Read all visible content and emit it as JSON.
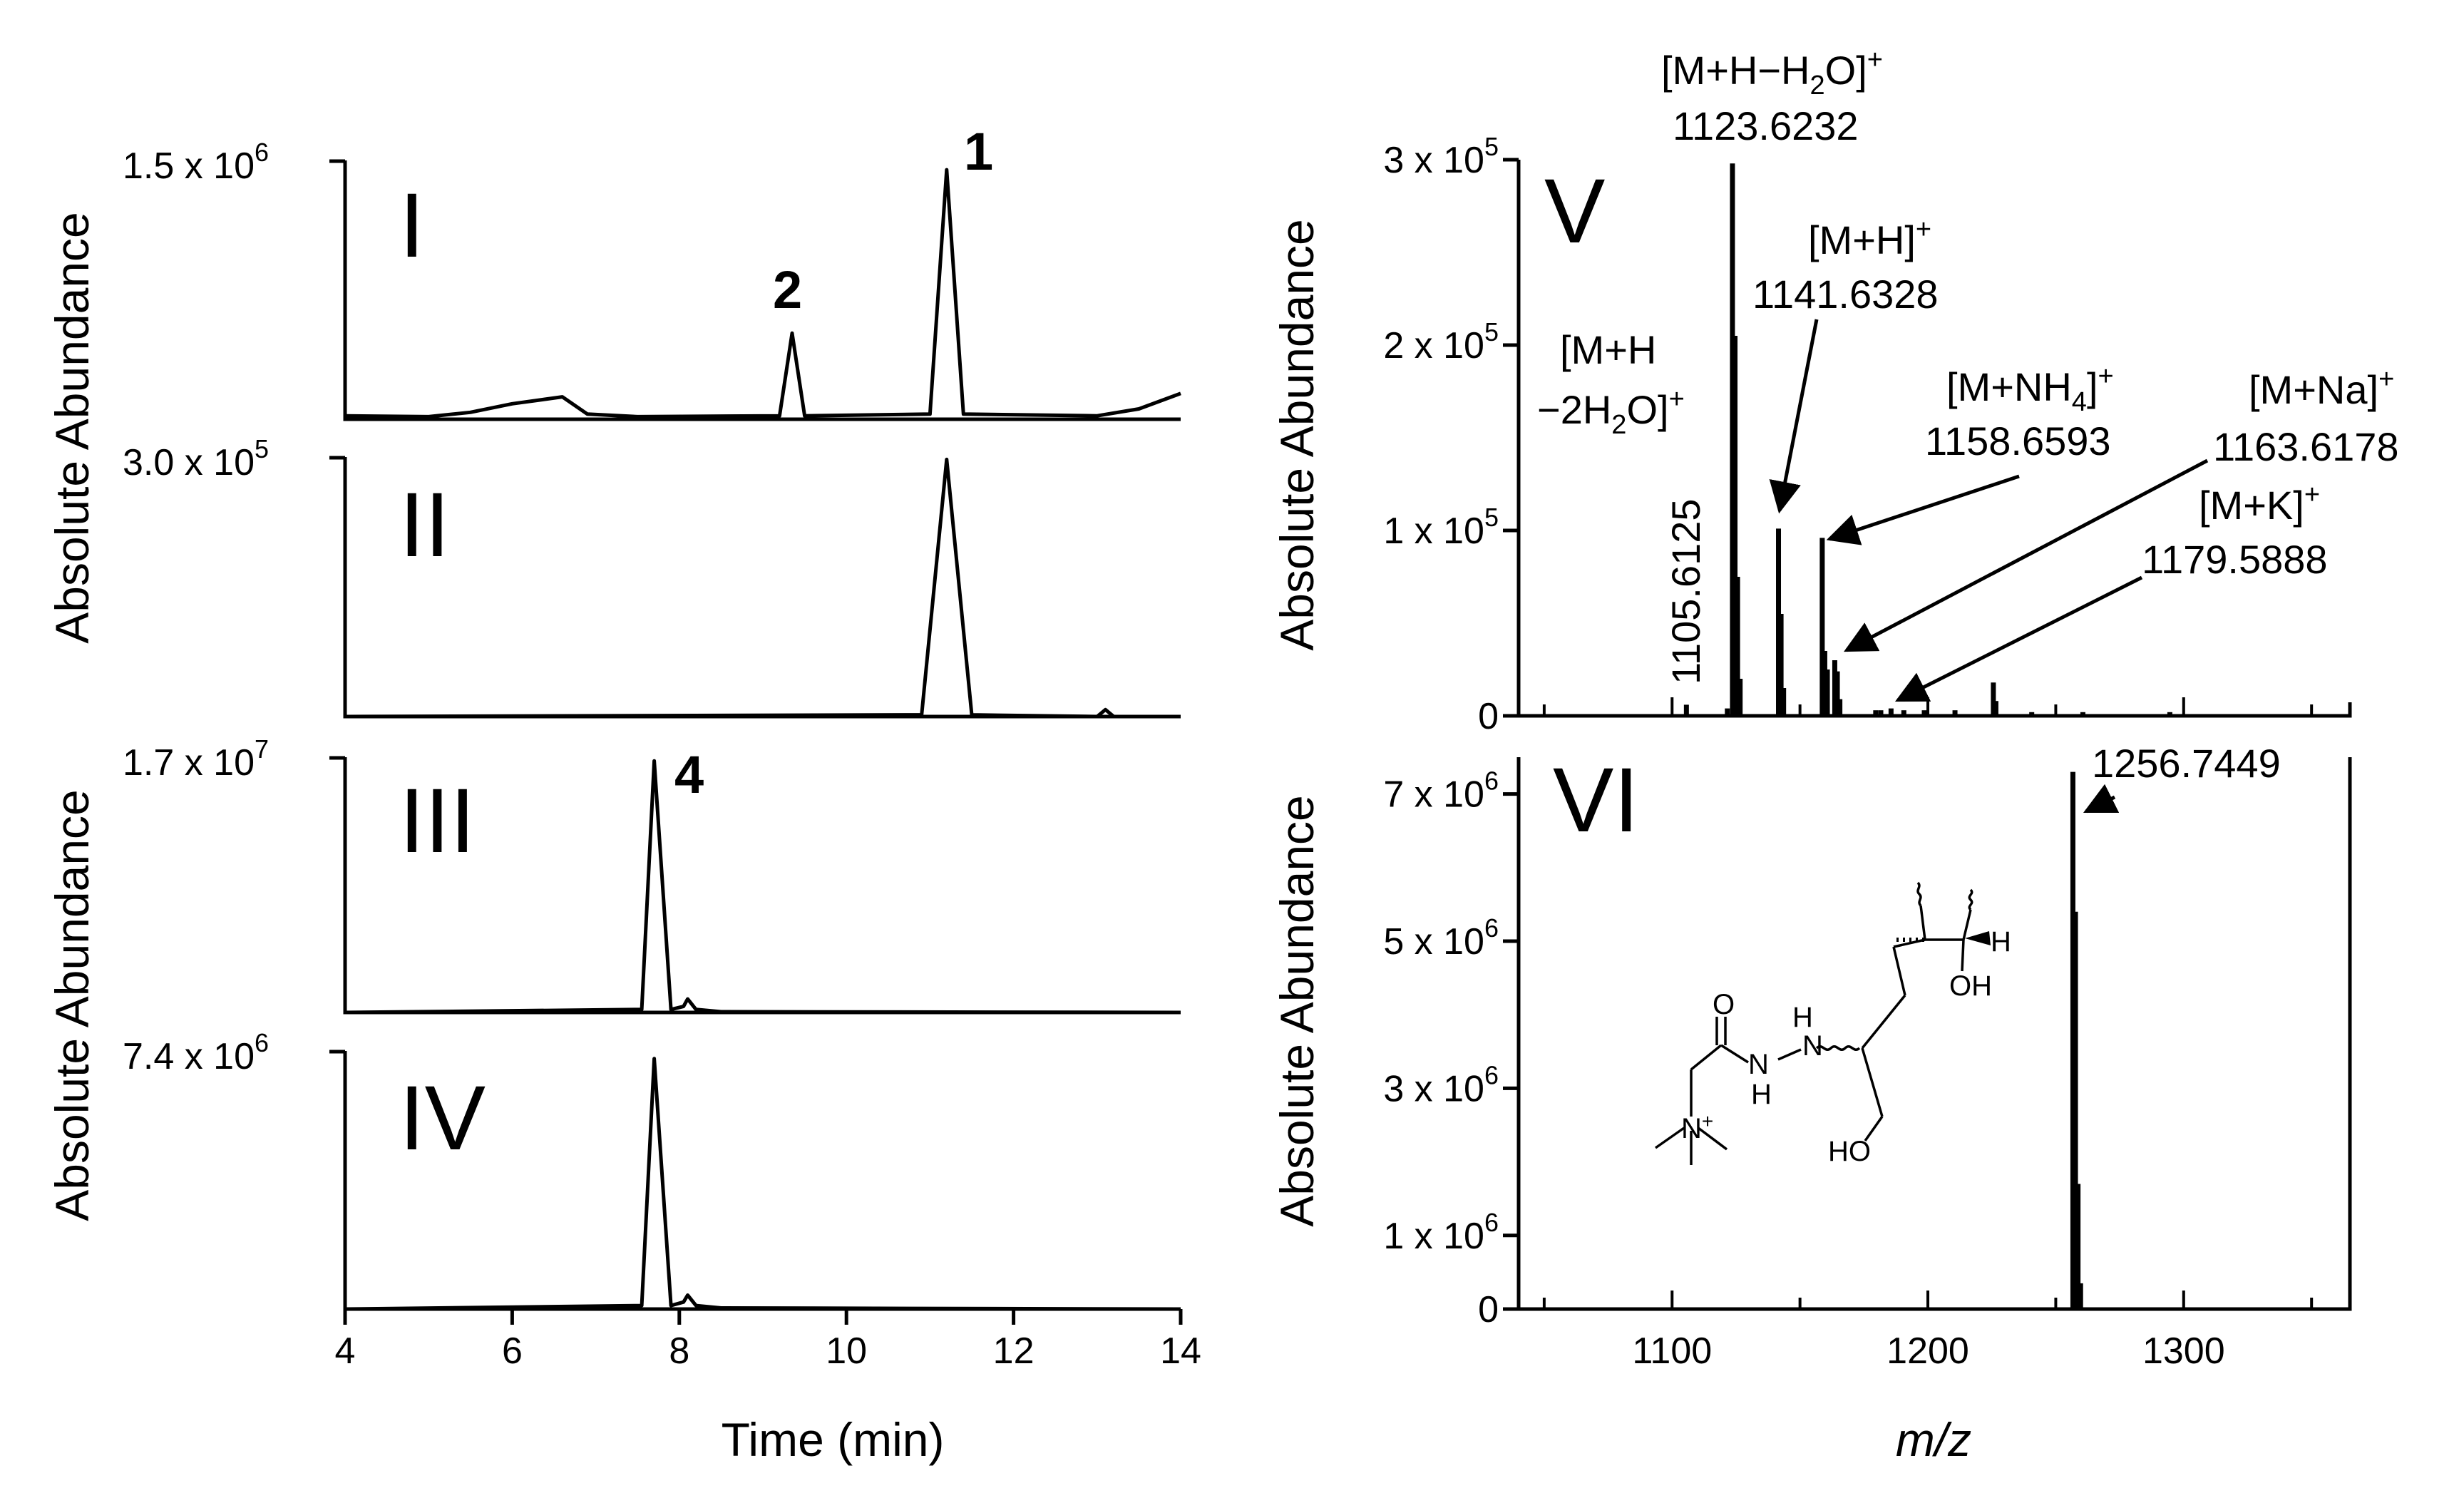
{
  "chart_data": [
    {
      "id": "I",
      "type": "line",
      "panel_label": "I",
      "xlabel": "Time (min)",
      "ylabel": "Absolute Abundance",
      "xlim": [
        4,
        14
      ],
      "ylim": [
        0,
        1500000
      ],
      "y_top_label": "1.5 x 10",
      "y_top_exp": "6",
      "series": [
        {
          "name": "I",
          "x": [
            4,
            5,
            5.5,
            6,
            6.3,
            6.6,
            6.9,
            7.5,
            9.2,
            9.35,
            9.5,
            11,
            11.2,
            11.4,
            13,
            13.5,
            14
          ],
          "y": [
            20000,
            15000,
            40000,
            90000,
            110000,
            130000,
            30000,
            15000,
            20000,
            500000,
            20000,
            30000,
            1450000,
            30000,
            20000,
            60000,
            150000
          ]
        }
      ],
      "peak_labels": [
        {
          "text": "1",
          "x": 11.2
        },
        {
          "text": "2",
          "x": 9.35
        }
      ]
    },
    {
      "id": "II",
      "type": "line",
      "panel_label": "II",
      "xlabel": "Time (min)",
      "ylabel": "Absolute Abundance",
      "xlim": [
        4,
        14
      ],
      "ylim": [
        0,
        300000
      ],
      "y_top_label": "3.0 x 10",
      "y_top_exp": "5",
      "series": [
        {
          "name": "II",
          "x": [
            4,
            10.9,
            11.2,
            11.5,
            13,
            13.1,
            13.2,
            14
          ],
          "y": [
            0,
            2000,
            298000,
            2000,
            0,
            8000,
            0,
            0
          ]
        }
      ],
      "peak_labels": []
    },
    {
      "id": "III",
      "type": "line",
      "panel_label": "III",
      "xlabel": "Time (min)",
      "ylabel": "Absolute Abundance",
      "xlim": [
        4,
        14
      ],
      "ylim": [
        0,
        17000000
      ],
      "y_top_label": "1.7 x 10",
      "y_top_exp": "7",
      "series": [
        {
          "name": "III",
          "x": [
            4,
            7.55,
            7.7,
            7.9,
            8.05,
            8.1,
            8.2,
            8.5,
            14
          ],
          "y": [
            0,
            200000,
            16800000,
            200000,
            400000,
            900000,
            200000,
            50000,
            0
          ]
        }
      ],
      "peak_labels": [
        {
          "text": "4",
          "x": 7.7
        }
      ]
    },
    {
      "id": "IV",
      "type": "line",
      "panel_label": "IV",
      "xlabel": "Time (min)",
      "ylabel": "Absolute Abundance",
      "xlim": [
        4,
        14
      ],
      "ylim": [
        0,
        7400000
      ],
      "y_top_label": "7.4 x 10",
      "y_top_exp": "6",
      "series": [
        {
          "name": "IV",
          "x": [
            4,
            7.55,
            7.7,
            7.9,
            8.05,
            8.1,
            8.2,
            8.5,
            14
          ],
          "y": [
            0,
            100000,
            7200000,
            100000,
            200000,
            400000,
            100000,
            30000,
            0
          ]
        }
      ],
      "peak_labels": []
    },
    {
      "id": "V",
      "type": "bar",
      "panel_label": "V",
      "xlabel": "m/z",
      "ylabel": "Absolute Abundance",
      "xlim": [
        1040,
        1365
      ],
      "ylim": [
        0,
        300000
      ],
      "yticks": [
        {
          "value": 0,
          "label": "0",
          "exp": ""
        },
        {
          "value": 100000,
          "label": "1 x 10",
          "exp": "5"
        },
        {
          "value": 200000,
          "label": "2 x 10",
          "exp": "5"
        },
        {
          "value": 300000,
          "label": "3 x 10",
          "exp": "5"
        }
      ],
      "x": [
        1105.6,
        1121.6,
        1123.6,
        1124.6,
        1125.6,
        1126.6,
        1141.6,
        1142.6,
        1143.6,
        1158.7,
        1159.7,
        1160.7,
        1163.6,
        1164.6,
        1165.6,
        1179.6,
        1181.6,
        1185.6,
        1190.6,
        1198.6,
        1210.6,
        1225.6,
        1226.6,
        1240.6,
        1260.6,
        1294.6
      ],
      "y": [
        6000,
        4000,
        298000,
        205000,
        75000,
        20000,
        101000,
        55000,
        15000,
        96000,
        35000,
        25000,
        30000,
        24000,
        9000,
        3000,
        3000,
        4000,
        3000,
        3000,
        3000,
        18000,
        8000,
        2000,
        2000,
        2000
      ],
      "annotations": [
        {
          "text": "[M+H−H",
          "sub": "2",
          "rest": "O]",
          "sup": "+",
          "value": "1123.6232"
        },
        {
          "text": "[M+H]",
          "sub": "",
          "rest": "",
          "sup": "+",
          "value": "1141.6328"
        },
        {
          "text": "[M+NH",
          "sub": "4",
          "rest": "]",
          "sup": "+",
          "value": "1158.6593"
        },
        {
          "text": "[M+Na]",
          "sub": "",
          "rest": "",
          "sup": "+",
          "value": "1163.6178"
        },
        {
          "text": "[M+K]",
          "sub": "",
          "rest": "",
          "sup": "+",
          "value": "1179.5888"
        },
        {
          "line1": "[M+H",
          "line2a": "−2H",
          "sub": "2",
          "line2b": "O]",
          "sup": "+",
          "value": "1105.6125"
        }
      ]
    },
    {
      "id": "VI",
      "type": "bar",
      "panel_label": "VI",
      "xlabel": "m/z",
      "ylabel": "Absolute Abundance",
      "xlim": [
        1040,
        1365
      ],
      "ylim": [
        0,
        7500000
      ],
      "xticks": [
        1100,
        1200,
        1300
      ],
      "yticks": [
        {
          "value": 0,
          "label": "0",
          "exp": ""
        },
        {
          "value": 1000000,
          "label": "1 x 10",
          "exp": "6"
        },
        {
          "value": 3000000,
          "label": "3 x 10",
          "exp": "6"
        },
        {
          "value": 5000000,
          "label": "5 x 10",
          "exp": "6"
        },
        {
          "value": 7000000,
          "label": "7 x 10",
          "exp": "6"
        }
      ],
      "x": [
        1256.7,
        1257.7,
        1258.7,
        1259.7
      ],
      "y": [
        7300000,
        5400000,
        1700000,
        350000
      ],
      "annotations": [
        {
          "value": "1256.7449"
        }
      ],
      "structure_labels": {
        "carbonyl_o": "O",
        "nh1": "H",
        "n1": "N",
        "n2": "N",
        "nh2": "H",
        "n_plus": "N",
        "plus": "+",
        "oh1": "OH",
        "ho": "HO",
        "h_stereo": "H"
      }
    }
  ],
  "xticks_time": [
    4,
    6,
    8,
    10,
    12,
    14
  ]
}
